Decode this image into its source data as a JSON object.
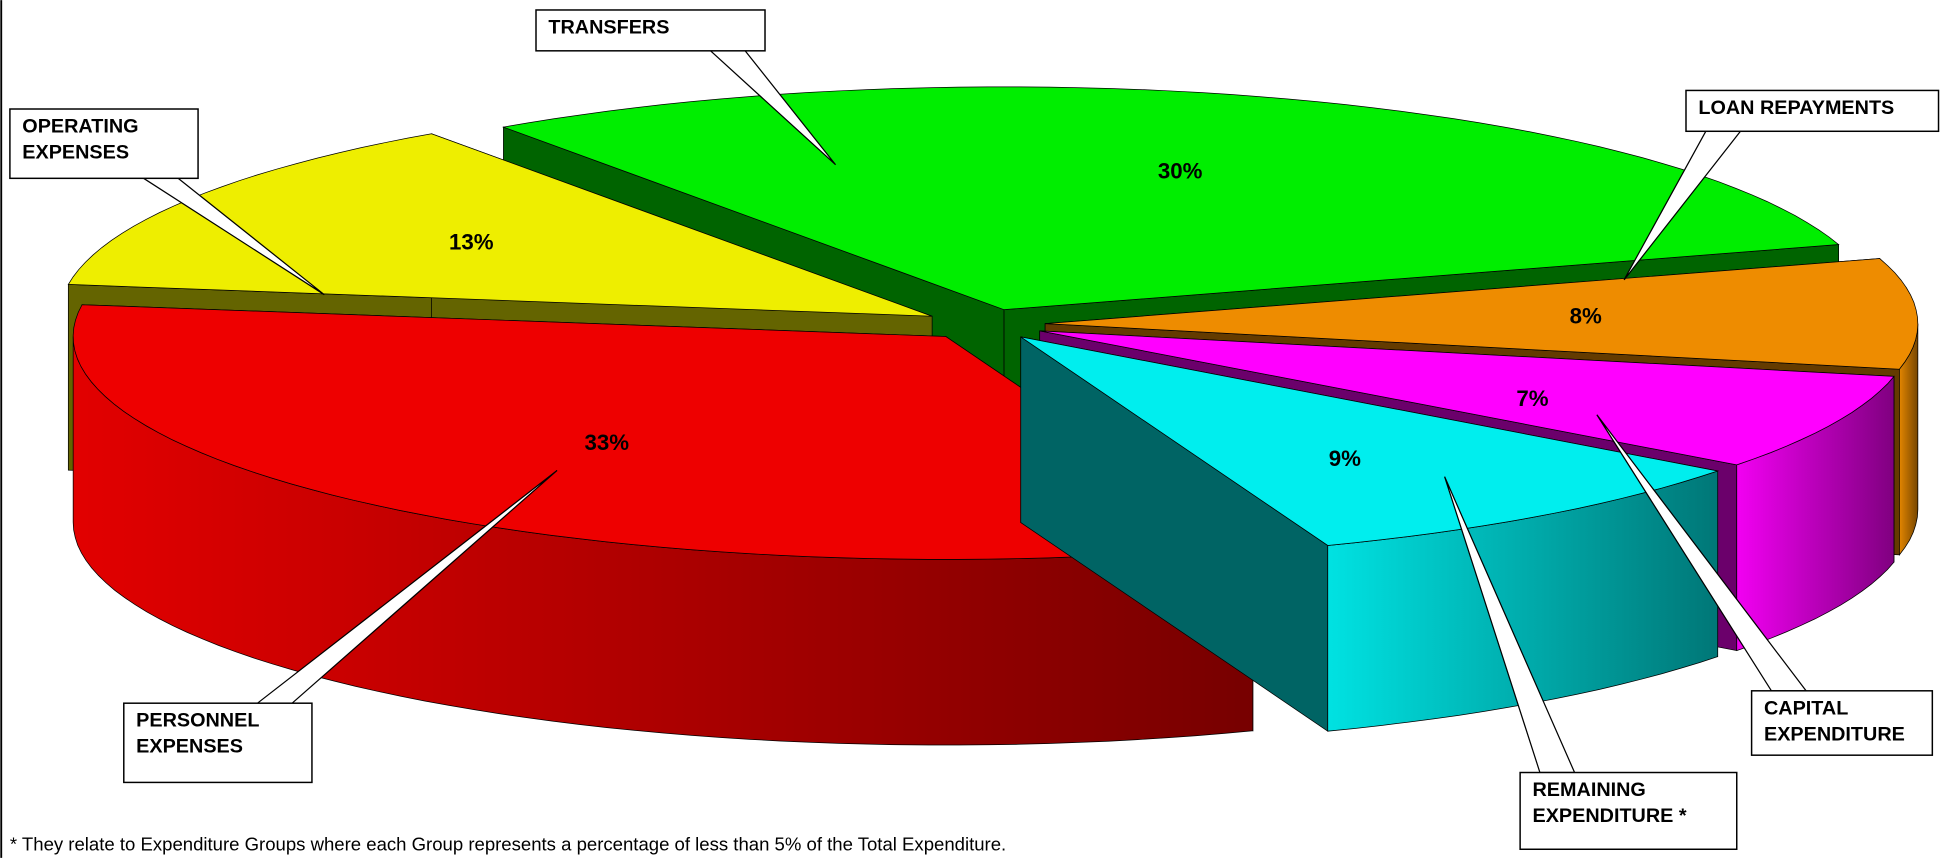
{
  "chart_data": {
    "type": "pie",
    "categories": [
      "TRANSFERS",
      "LOAN REPAYMENTS",
      "CAPITAL EXPENDITURE",
      "REMAINING EXPENDITURE *",
      "PERSONNEL EXPENSES",
      "OPERATING EXPENSES"
    ],
    "values": [
      30,
      8,
      7,
      9,
      33,
      13
    ],
    "value_labels": [
      "30%",
      "8%",
      "7%",
      "9%",
      "33%",
      "13%"
    ],
    "colors": [
      "#00ee00",
      "#ee8c00",
      "#ff00ff",
      "#00eeee",
      "#ee0000",
      "#eeee00"
    ],
    "footnote": "* They relate to Expenditure Groups where each Group represents a percentage of less than 5% of the Total Expenditure."
  }
}
